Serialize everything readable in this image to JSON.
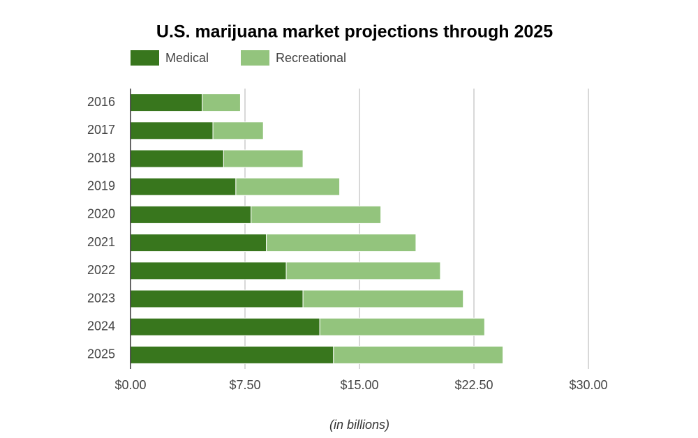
{
  "chart_data": {
    "type": "stacked-bar-horizontal",
    "title": "U.S. marijuana market projections through 2025",
    "x_axis_title": "(in billions)",
    "categories": [
      "2016",
      "2017",
      "2018",
      "2019",
      "2020",
      "2021",
      "2022",
      "2023",
      "2024",
      "2025"
    ],
    "series": [
      {
        "name": "Medical",
        "color": "#38761d",
        "values": [
          4.7,
          5.4,
          6.1,
          6.9,
          7.9,
          8.9,
          10.2,
          11.3,
          12.4,
          13.3
        ]
      },
      {
        "name": "Recreational",
        "color": "#93c47d",
        "values": [
          2.5,
          3.3,
          5.2,
          6.8,
          8.5,
          9.8,
          10.1,
          10.5,
          10.8,
          11.1
        ]
      }
    ],
    "xlim": [
      0,
      30
    ],
    "xticks": [
      {
        "value": 0,
        "label": "$0.00"
      },
      {
        "value": 7.5,
        "label": "$7.50"
      },
      {
        "value": 15,
        "label": "$15.00"
      },
      {
        "value": 22.5,
        "label": "$22.50"
      },
      {
        "value": 30,
        "label": "$30.00"
      }
    ],
    "grid": true,
    "legend": "top-left"
  }
}
